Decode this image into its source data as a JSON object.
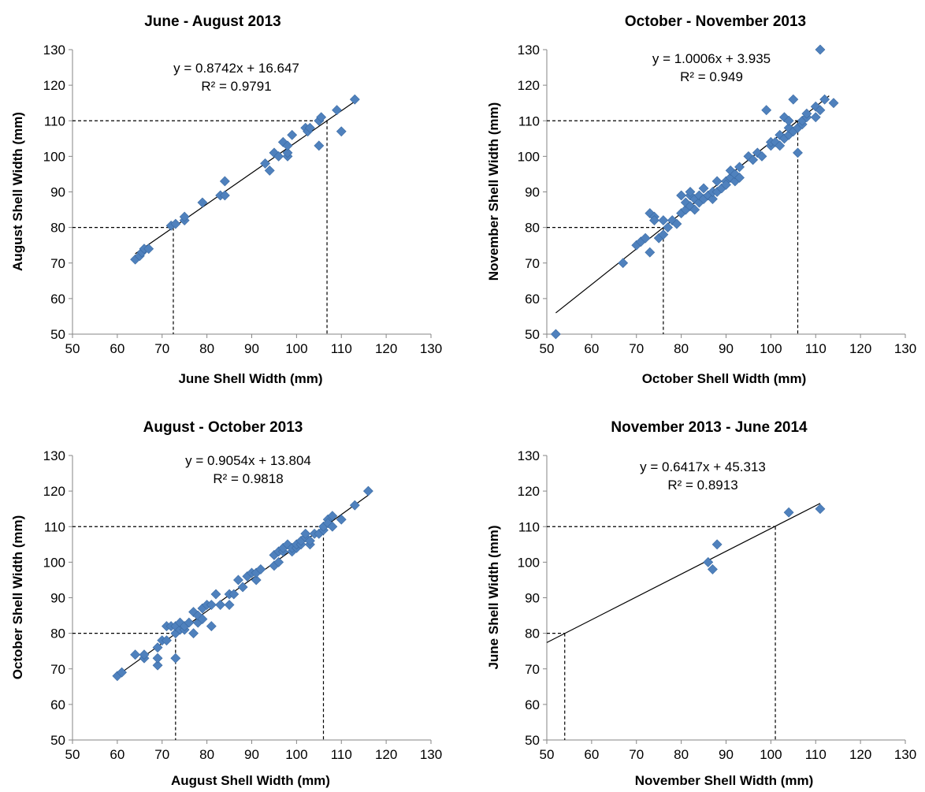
{
  "chart_data": [
    {
      "type": "scatter",
      "title": "June - August 2013",
      "xlabel": "June Shell Width (mm)",
      "ylabel": "August Shell Width (mm)",
      "xlim": [
        50,
        130
      ],
      "ylim": [
        50,
        130
      ],
      "xticks": [
        "50",
        "60",
        "70",
        "80",
        "90",
        "100",
        "110",
        "120",
        "130"
      ],
      "yticks": [
        "50",
        "60",
        "70",
        "80",
        "90",
        "100",
        "110",
        "120",
        "130"
      ],
      "equation": "y = 0.8742x + 16.647",
      "r2": "R² = 0.9791",
      "trend": {
        "slope": 0.8742,
        "intercept": 16.647,
        "x_range": [
          64,
          113
        ]
      },
      "reference_lines": [
        {
          "x": 72.5,
          "y": 80
        },
        {
          "x": 106.8,
          "y": 110
        }
      ],
      "marker_color": "#4f81bd",
      "grid": false,
      "points": [
        [
          64,
          71
        ],
        [
          65,
          72
        ],
        [
          65.5,
          73
        ],
        [
          66,
          74
        ],
        [
          67,
          74
        ],
        [
          72,
          80.5
        ],
        [
          73,
          81
        ],
        [
          75,
          82
        ],
        [
          75,
          83
        ],
        [
          79,
          87
        ],
        [
          83,
          89
        ],
        [
          84,
          89
        ],
        [
          84,
          93
        ],
        [
          93,
          98
        ],
        [
          94,
          96
        ],
        [
          95,
          101
        ],
        [
          96,
          100
        ],
        [
          97,
          104
        ],
        [
          98,
          100
        ],
        [
          98,
          101
        ],
        [
          98,
          103
        ],
        [
          99,
          106
        ],
        [
          102,
          108
        ],
        [
          102.5,
          107
        ],
        [
          103,
          108
        ],
        [
          105,
          103
        ],
        [
          105,
          110
        ],
        [
          105.5,
          111
        ],
        [
          109,
          113
        ],
        [
          110,
          107
        ],
        [
          113,
          116
        ]
      ]
    },
    {
      "type": "scatter",
      "title": "October - November 2013",
      "xlabel": "October Shell Width (mm)",
      "ylabel": "November Shell Width (mm)",
      "xlim": [
        50,
        130
      ],
      "ylim": [
        50,
        130
      ],
      "xticks": [
        "50",
        "60",
        "70",
        "80",
        "90",
        "100",
        "110",
        "120",
        "130"
      ],
      "yticks": [
        "50",
        "60",
        "70",
        "80",
        "90",
        "100",
        "110",
        "120",
        "130"
      ],
      "equation": "y = 1.0006x + 3.935",
      "r2": "R² = 0.949",
      "trend": {
        "slope": 1.0006,
        "intercept": 3.935,
        "x_range": [
          52,
          113
        ]
      },
      "reference_lines": [
        {
          "x": 76,
          "y": 80
        },
        {
          "x": 106,
          "y": 110
        }
      ],
      "marker_color": "#4f81bd",
      "grid": false,
      "points": [
        [
          52,
          50
        ],
        [
          67,
          70
        ],
        [
          70,
          75
        ],
        [
          71,
          76
        ],
        [
          72,
          77
        ],
        [
          73,
          73
        ],
        [
          73,
          84
        ],
        [
          74,
          83
        ],
        [
          74,
          82
        ],
        [
          75,
          77
        ],
        [
          76,
          78
        ],
        [
          76,
          82
        ],
        [
          77,
          80
        ],
        [
          78,
          82
        ],
        [
          79,
          81
        ],
        [
          80,
          84
        ],
        [
          80,
          89
        ],
        [
          81,
          85
        ],
        [
          81,
          87
        ],
        [
          82,
          86
        ],
        [
          82,
          89
        ],
        [
          82,
          90
        ],
        [
          83,
          88
        ],
        [
          83,
          85
        ],
        [
          84,
          87
        ],
        [
          84,
          89
        ],
        [
          85,
          88
        ],
        [
          85,
          91
        ],
        [
          86,
          89
        ],
        [
          87,
          88
        ],
        [
          87,
          90
        ],
        [
          88,
          90
        ],
        [
          88,
          93
        ],
        [
          89,
          91
        ],
        [
          90,
          93
        ],
        [
          90,
          92
        ],
        [
          91,
          94
        ],
        [
          91,
          96
        ],
        [
          92,
          93
        ],
        [
          92,
          95
        ],
        [
          93,
          94
        ],
        [
          93,
          97
        ],
        [
          95,
          100
        ],
        [
          96,
          99
        ],
        [
          97,
          101
        ],
        [
          98,
          100
        ],
        [
          99,
          113
        ],
        [
          100,
          103
        ],
        [
          100,
          104
        ],
        [
          101,
          104
        ],
        [
          102,
          103
        ],
        [
          102,
          106
        ],
        [
          103,
          105
        ],
        [
          103,
          111
        ],
        [
          104,
          106
        ],
        [
          104,
          108
        ],
        [
          104,
          110
        ],
        [
          105,
          107
        ],
        [
          105,
          116
        ],
        [
          106,
          101
        ],
        [
          106,
          108
        ],
        [
          107,
          109
        ],
        [
          107,
          110
        ],
        [
          108,
          111
        ],
        [
          108,
          112
        ],
        [
          110,
          111
        ],
        [
          110,
          114
        ],
        [
          111,
          113
        ],
        [
          111,
          130
        ],
        [
          112,
          116
        ],
        [
          114,
          115
        ]
      ]
    },
    {
      "type": "scatter",
      "title": "August - October 2013",
      "xlabel": "August Shell Width (mm)",
      "ylabel": "October Shell Width (mm)",
      "xlim": [
        50,
        130
      ],
      "ylim": [
        50,
        130
      ],
      "xticks": [
        "50",
        "60",
        "70",
        "80",
        "90",
        "100",
        "110",
        "120",
        "130"
      ],
      "yticks": [
        "50",
        "60",
        "70",
        "80",
        "90",
        "100",
        "110",
        "120",
        "130"
      ],
      "equation": "y = 0.9054x + 13.804",
      "r2": "R² = 0.9818",
      "trend": {
        "slope": 0.9054,
        "intercept": 13.804,
        "x_range": [
          60,
          116
        ]
      },
      "reference_lines": [
        {
          "x": 73,
          "y": 80
        },
        {
          "x": 106,
          "y": 110
        }
      ],
      "marker_color": "#4f81bd",
      "grid": false,
      "points": [
        [
          60,
          68
        ],
        [
          61,
          69
        ],
        [
          64,
          74
        ],
        [
          66,
          73
        ],
        [
          66,
          74
        ],
        [
          69,
          71
        ],
        [
          69,
          73
        ],
        [
          69,
          76
        ],
        [
          70,
          78
        ],
        [
          71,
          82
        ],
        [
          71,
          78
        ],
        [
          72,
          82
        ],
        [
          73,
          73
        ],
        [
          73,
          80
        ],
        [
          73,
          82
        ],
        [
          74,
          81
        ],
        [
          74,
          83
        ],
        [
          75,
          81
        ],
        [
          75,
          82
        ],
        [
          76,
          83
        ],
        [
          77,
          80
        ],
        [
          77,
          86
        ],
        [
          78,
          83
        ],
        [
          78,
          85
        ],
        [
          79,
          84
        ],
        [
          79,
          87
        ],
        [
          80,
          88
        ],
        [
          81,
          82
        ],
        [
          81,
          88
        ],
        [
          82,
          91
        ],
        [
          83,
          88
        ],
        [
          85,
          88
        ],
        [
          85,
          91
        ],
        [
          86,
          91
        ],
        [
          87,
          95
        ],
        [
          88,
          93
        ],
        [
          89,
          96
        ],
        [
          90,
          97
        ],
        [
          91,
          95
        ],
        [
          91,
          97
        ],
        [
          92,
          98
        ],
        [
          95,
          99
        ],
        [
          95,
          102
        ],
        [
          96,
          100
        ],
        [
          96,
          103
        ],
        [
          97,
          103
        ],
        [
          97,
          104
        ],
        [
          98,
          105
        ],
        [
          99,
          103
        ],
        [
          99,
          104
        ],
        [
          100,
          104
        ],
        [
          100,
          105
        ],
        [
          101,
          105
        ],
        [
          101,
          106
        ],
        [
          102,
          107
        ],
        [
          102,
          108
        ],
        [
          103,
          105
        ],
        [
          103,
          106
        ],
        [
          104,
          108
        ],
        [
          105,
          108
        ],
        [
          106,
          109
        ],
        [
          106,
          110
        ],
        [
          107,
          112
        ],
        [
          107,
          111
        ],
        [
          108,
          110
        ],
        [
          108,
          113
        ],
        [
          110,
          112
        ],
        [
          113,
          116
        ],
        [
          116,
          120
        ]
      ]
    },
    {
      "type": "scatter",
      "title": "November 2013 - June 2014",
      "xlabel": "November Shell Width (mm)",
      "ylabel": "June Shell Width (mm)",
      "xlim": [
        50,
        130
      ],
      "ylim": [
        50,
        130
      ],
      "xticks": [
        "50",
        "60",
        "70",
        "80",
        "90",
        "100",
        "110",
        "120",
        "130"
      ],
      "yticks": [
        "50",
        "60",
        "70",
        "80",
        "90",
        "100",
        "110",
        "120",
        "130"
      ],
      "equation": "y = 0.6417x + 45.313",
      "r2": "R² = 0.8913",
      "trend": {
        "slope": 0.6417,
        "intercept": 45.313,
        "x_range": [
          50,
          111
        ]
      },
      "reference_lines": [
        {
          "x": 54,
          "y": 80
        },
        {
          "x": 101,
          "y": 110
        }
      ],
      "marker_color": "#4f81bd",
      "grid": false,
      "points": [
        [
          86,
          100
        ],
        [
          87,
          98
        ],
        [
          88,
          105
        ],
        [
          104,
          114
        ],
        [
          111,
          115
        ]
      ]
    }
  ]
}
